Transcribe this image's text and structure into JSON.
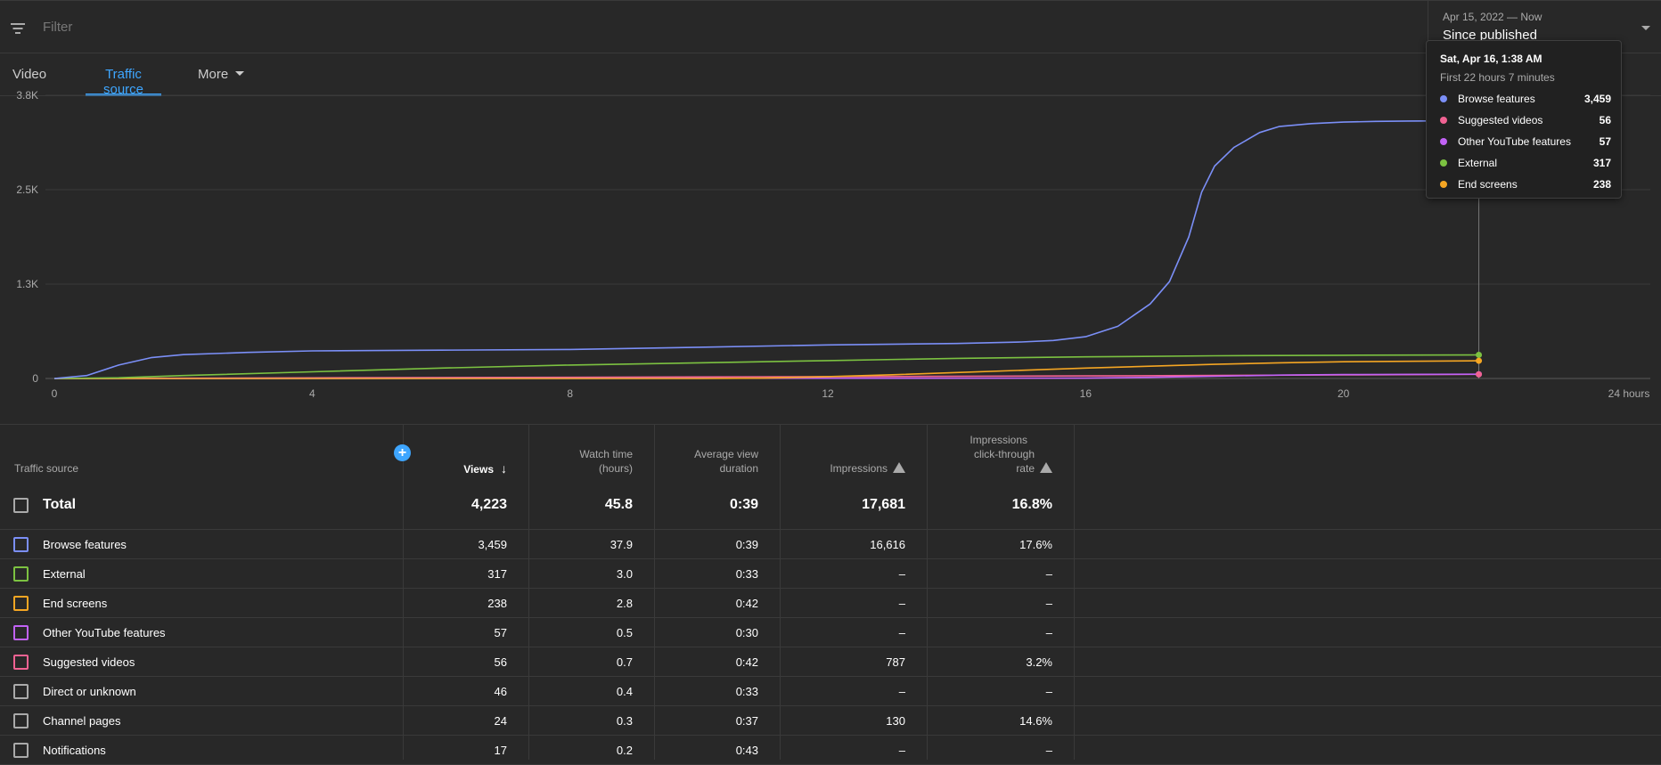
{
  "filter": {
    "placeholder": "Filter"
  },
  "date_range": {
    "range": "Apr 15, 2022 — Now",
    "label": "Since published"
  },
  "tabs": [
    {
      "label": "Video",
      "active": false
    },
    {
      "label": "Traffic source",
      "active": true
    },
    {
      "label": "More",
      "active": false
    }
  ],
  "tooltip": {
    "title": "Sat, Apr 16, 1:38 AM",
    "subtitle": "First 22 hours 7 minutes",
    "items": [
      {
        "label": "Browse features",
        "value": "3,459",
        "color": "#7b8ff7"
      },
      {
        "label": "Suggested videos",
        "value": "56",
        "color": "#f06292"
      },
      {
        "label": "Other YouTube features",
        "value": "57",
        "color": "#c162f5"
      },
      {
        "label": "External",
        "value": "317",
        "color": "#7cc241"
      },
      {
        "label": "End screens",
        "value": "238",
        "color": "#f5a623"
      }
    ]
  },
  "chart_data": {
    "type": "line",
    "xlabel": "",
    "ylabel": "",
    "x_ticks": [
      "0",
      "4",
      "8",
      "12",
      "16",
      "20",
      "24 hours"
    ],
    "y_ticks": [
      "0",
      "1.3K",
      "2.5K",
      "3.8K"
    ],
    "xlim": [
      0,
      24
    ],
    "ylim": [
      0,
      3800
    ],
    "grid": true,
    "legend": "none",
    "cursor_x": 22.1,
    "series": [
      {
        "name": "Browse features",
        "color": "#7b8ff7",
        "x": [
          0,
          0.5,
          1,
          1.5,
          2,
          3,
          4,
          6,
          8,
          10,
          12,
          14,
          15,
          15.5,
          16,
          16.5,
          17,
          17.3,
          17.6,
          17.8,
          18,
          18.3,
          18.7,
          19,
          19.5,
          20,
          20.5,
          21,
          22.1
        ],
        "y": [
          0,
          40,
          180,
          280,
          320,
          350,
          370,
          380,
          390,
          420,
          450,
          470,
          490,
          510,
          560,
          700,
          1000,
          1300,
          1900,
          2500,
          2850,
          3100,
          3300,
          3380,
          3420,
          3440,
          3450,
          3455,
          3459
        ]
      },
      {
        "name": "External",
        "color": "#7cc241",
        "x": [
          0,
          1,
          2,
          4,
          6,
          8,
          10,
          12,
          14,
          16,
          18,
          20,
          22.1
        ],
        "y": [
          0,
          10,
          40,
          90,
          140,
          180,
          210,
          240,
          270,
          290,
          305,
          312,
          317
        ]
      },
      {
        "name": "End screens",
        "color": "#f5a623",
        "x": [
          0,
          10,
          11,
          12,
          13,
          14,
          15,
          16,
          17,
          18,
          19,
          20,
          22.1
        ],
        "y": [
          0,
          0,
          5,
          25,
          50,
          80,
          110,
          140,
          165,
          190,
          210,
          225,
          238
        ]
      },
      {
        "name": "Other YouTube features",
        "color": "#c162f5",
        "x": [
          0,
          16,
          17,
          18,
          19,
          20,
          22.1
        ],
        "y": [
          0,
          5,
          15,
          30,
          45,
          52,
          57
        ]
      },
      {
        "name": "Suggested videos",
        "color": "#f06292",
        "x": [
          0,
          4,
          8,
          12,
          16,
          20,
          22.1
        ],
        "y": [
          0,
          8,
          15,
          25,
          35,
          48,
          56
        ]
      }
    ]
  },
  "table": {
    "headers": {
      "source": "Traffic source",
      "views": "Views",
      "watch_time_1": "Watch time",
      "watch_time_2": "(hours)",
      "avg_1": "Average view",
      "avg_2": "duration",
      "impressions": "Impressions",
      "ctr_1": "Impressions",
      "ctr_2": "click-through",
      "ctr_3": "rate"
    },
    "total": {
      "name": "Total",
      "views": "4,223",
      "watch_time": "45.8",
      "avg_duration": "0:39",
      "impressions": "17,681",
      "ctr": "16.8%"
    },
    "rows": [
      {
        "name": "Browse features",
        "views": "3,459",
        "watch_time": "37.9",
        "avg_duration": "0:39",
        "impressions": "16,616",
        "ctr": "17.6%",
        "color": "#7b8ff7"
      },
      {
        "name": "External",
        "views": "317",
        "watch_time": "3.0",
        "avg_duration": "0:33",
        "impressions": "–",
        "ctr": "–",
        "color": "#7cc241"
      },
      {
        "name": "End screens",
        "views": "238",
        "watch_time": "2.8",
        "avg_duration": "0:42",
        "impressions": "–",
        "ctr": "–",
        "color": "#f5a623"
      },
      {
        "name": "Other YouTube features",
        "views": "57",
        "watch_time": "0.5",
        "avg_duration": "0:30",
        "impressions": "–",
        "ctr": "–",
        "color": "#c162f5"
      },
      {
        "name": "Suggested videos",
        "views": "56",
        "watch_time": "0.7",
        "avg_duration": "0:42",
        "impressions": "787",
        "ctr": "3.2%",
        "color": "#f06292"
      },
      {
        "name": "Direct or unknown",
        "views": "46",
        "watch_time": "0.4",
        "avg_duration": "0:33",
        "impressions": "–",
        "ctr": "–",
        "color": "#aaaaaa"
      },
      {
        "name": "Channel pages",
        "views": "24",
        "watch_time": "0.3",
        "avg_duration": "0:37",
        "impressions": "130",
        "ctr": "14.6%",
        "color": "#aaaaaa"
      },
      {
        "name": "Notifications",
        "views": "17",
        "watch_time": "0.2",
        "avg_duration": "0:43",
        "impressions": "–",
        "ctr": "–",
        "color": "#aaaaaa"
      }
    ]
  }
}
